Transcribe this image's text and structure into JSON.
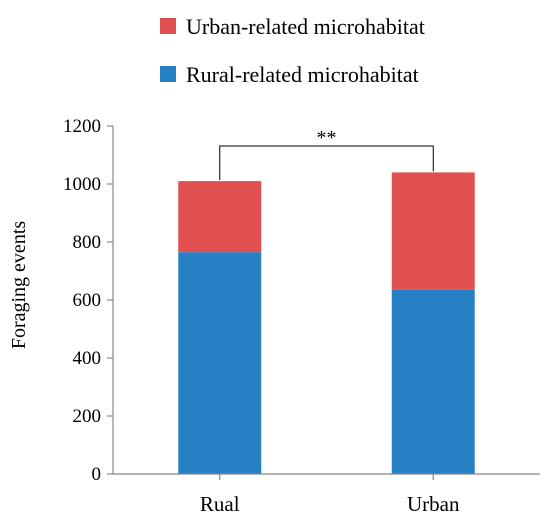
{
  "chart_data": {
    "type": "bar",
    "stacked": true,
    "categories": [
      "Rual",
      "Urban"
    ],
    "series": [
      {
        "name": "Rural-related microhabitat",
        "values": [
          765,
          635
        ],
        "color": "#2880c4"
      },
      {
        "name": "Urban-related microhabitat",
        "values": [
          245,
          405
        ],
        "color": "#e05050"
      }
    ],
    "legend_order": [
      1,
      0
    ],
    "legend_position": "top",
    "ylabel": "Foraging events",
    "ylim": [
      0,
      1200
    ],
    "yticks": [
      0,
      200,
      400,
      600,
      800,
      1000,
      1200
    ],
    "grid": false,
    "significance": {
      "label": "**",
      "between": [
        "Rual",
        "Urban"
      ]
    }
  }
}
